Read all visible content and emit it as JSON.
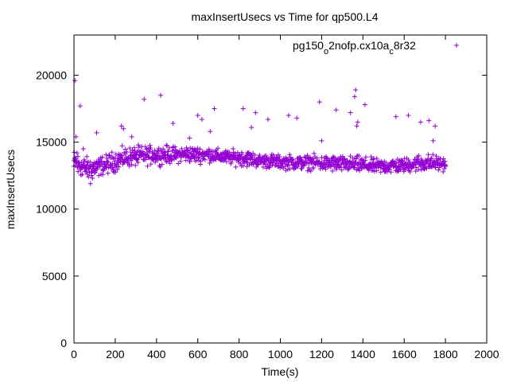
{
  "chart_data": {
    "type": "scatter",
    "title": "maxInsertUsecs vs Time for qp500.L4",
    "xlabel": "Time(s)",
    "ylabel": "maxInsertUsecs",
    "xlim": [
      0,
      2000
    ],
    "ylim": [
      0,
      23000
    ],
    "x_ticks": [
      "0",
      "200",
      "400",
      "600",
      "800",
      "1000",
      "1200",
      "1400",
      "1600",
      "1800",
      "2000"
    ],
    "y_ticks": [
      "0",
      "5000",
      "10000",
      "15000",
      "20000"
    ],
    "grid": false,
    "legend_position": "top-right",
    "series": [
      {
        "name": "pg150_o2nofp.cx10a_c8r32",
        "color": "#9400d3",
        "marker": "plus",
        "points": [
          [
            0,
            13200
          ],
          [
            5,
            19600
          ],
          [
            10,
            15400
          ],
          [
            15,
            14200
          ],
          [
            20,
            12800
          ],
          [
            25,
            13500
          ],
          [
            30,
            17700
          ],
          [
            40,
            12600
          ],
          [
            45,
            14500
          ],
          [
            60,
            12900
          ],
          [
            70,
            12400
          ],
          [
            80,
            11900
          ],
          [
            90,
            12300
          ],
          [
            100,
            12700
          ],
          [
            110,
            15700
          ],
          [
            120,
            12500
          ],
          [
            140,
            12900
          ],
          [
            160,
            13300
          ],
          [
            180,
            13100
          ],
          [
            200,
            13200
          ],
          [
            220,
            13600
          ],
          [
            230,
            16200
          ],
          [
            240,
            16000
          ],
          [
            260,
            13500
          ],
          [
            280,
            15400
          ],
          [
            300,
            13800
          ],
          [
            320,
            14100
          ],
          [
            340,
            18200
          ],
          [
            360,
            13900
          ],
          [
            380,
            14200
          ],
          [
            400,
            14000
          ],
          [
            420,
            18500
          ],
          [
            440,
            14300
          ],
          [
            460,
            13800
          ],
          [
            480,
            16400
          ],
          [
            500,
            14100
          ],
          [
            520,
            14000
          ],
          [
            540,
            14200
          ],
          [
            560,
            15300
          ],
          [
            580,
            13900
          ],
          [
            600,
            17000
          ],
          [
            620,
            16700
          ],
          [
            640,
            14100
          ],
          [
            660,
            15800
          ],
          [
            680,
            17500
          ],
          [
            700,
            13800
          ],
          [
            740,
            14000
          ],
          [
            780,
            13900
          ],
          [
            800,
            14000
          ],
          [
            820,
            17500
          ],
          [
            840,
            14200
          ],
          [
            860,
            16100
          ],
          [
            880,
            17200
          ],
          [
            900,
            13900
          ],
          [
            940,
            16700
          ],
          [
            980,
            13600
          ],
          [
            1000,
            13500
          ],
          [
            1040,
            17000
          ],
          [
            1080,
            16800
          ],
          [
            1100,
            13700
          ],
          [
            1150,
            13600
          ],
          [
            1190,
            18000
          ],
          [
            1200,
            15100
          ],
          [
            1240,
            13300
          ],
          [
            1270,
            17400
          ],
          [
            1300,
            13500
          ],
          [
            1340,
            17200
          ],
          [
            1360,
            18400
          ],
          [
            1365,
            18900
          ],
          [
            1370,
            16200
          ],
          [
            1375,
            16500
          ],
          [
            1410,
            17800
          ],
          [
            1450,
            13400
          ],
          [
            1500,
            13300
          ],
          [
            1550,
            13200
          ],
          [
            1560,
            16900
          ],
          [
            1600,
            13400
          ],
          [
            1620,
            17000
          ],
          [
            1660,
            13500
          ],
          [
            1680,
            16500
          ],
          [
            1720,
            16600
          ],
          [
            1740,
            15100
          ],
          [
            1750,
            16200
          ],
          [
            1800,
            13200
          ]
        ],
        "band": [
          [
            0,
            12300,
            14800
          ],
          [
            50,
            12000,
            14200
          ],
          [
            100,
            12100,
            14200
          ],
          [
            150,
            12300,
            14300
          ],
          [
            200,
            12500,
            14700
          ],
          [
            250,
            12800,
            14900
          ],
          [
            300,
            12900,
            15000
          ],
          [
            350,
            13000,
            15000
          ],
          [
            400,
            13100,
            15000
          ],
          [
            450,
            13100,
            15000
          ],
          [
            500,
            13200,
            14900
          ],
          [
            550,
            13200,
            15000
          ],
          [
            600,
            13200,
            14900
          ],
          [
            650,
            13300,
            14900
          ],
          [
            700,
            13200,
            14700
          ],
          [
            750,
            13100,
            14600
          ],
          [
            800,
            13000,
            14700
          ],
          [
            850,
            12900,
            14600
          ],
          [
            900,
            12900,
            14300
          ],
          [
            950,
            12800,
            14400
          ],
          [
            1000,
            12800,
            14200
          ],
          [
            1050,
            12700,
            14300
          ],
          [
            1100,
            12700,
            14200
          ],
          [
            1150,
            12700,
            14300
          ],
          [
            1200,
            12600,
            14200
          ],
          [
            1250,
            12500,
            14300
          ],
          [
            1300,
            12500,
            14200
          ],
          [
            1350,
            12500,
            14200
          ],
          [
            1400,
            12400,
            14200
          ],
          [
            1450,
            12400,
            14000
          ],
          [
            1500,
            12400,
            14000
          ],
          [
            1550,
            12400,
            14100
          ],
          [
            1600,
            12500,
            14000
          ],
          [
            1650,
            12500,
            14300
          ],
          [
            1700,
            12500,
            14400
          ],
          [
            1750,
            12600,
            14300
          ],
          [
            1800,
            12700,
            14000
          ]
        ]
      }
    ]
  }
}
